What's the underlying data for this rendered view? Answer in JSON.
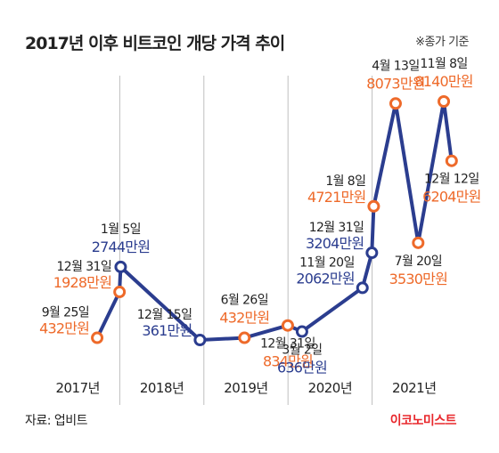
{
  "header": {
    "title": "2017년 이후 비트코인 개당 가격 추이",
    "note": "※종가 기준"
  },
  "footer": {
    "source": "자료: 업비트",
    "brand": "이코노미스트"
  },
  "colors": {
    "line": "#2b3d8f",
    "highlight": "#ee6a2a",
    "grid": "#bfbfbf",
    "axis": "#555555",
    "brand": "#e8272c"
  },
  "chart_data": {
    "type": "line",
    "title": "2017년 이후 비트코인 개당 가격 추이",
    "unit": "만원",
    "x_categories": [
      "2017년",
      "2018년",
      "2019년",
      "2020년",
      "2021년"
    ],
    "series": [
      {
        "points": [
          {
            "date": "2017-09-25",
            "date_label": "9월 25일",
            "value": 432,
            "value_label": "432만원",
            "color": "orange",
            "label_side": "left"
          },
          {
            "date": "2017-12-31",
            "date_label": "12월 31일",
            "value": 1928,
            "value_label": "1928만원",
            "color": "orange",
            "label_side": "left"
          },
          {
            "date": "2018-01-05",
            "date_label": "1월 5일",
            "value": 2744,
            "value_label": "2744만원",
            "color": "blue",
            "label_side": "above"
          },
          {
            "date": "2018-12-15",
            "date_label": "12월 15일",
            "value": 361,
            "value_label": "361만원",
            "color": "blue",
            "label_side": "left"
          },
          {
            "date": "2019-06-26",
            "date_label": "6월 26일",
            "value": 432,
            "value_label": "432만원",
            "color": "orange",
            "label_side": "above"
          },
          {
            "date": "2019-12-31",
            "date_label": "12월 31일",
            "value": 834,
            "value_label": "834만원",
            "color": "orange",
            "label_side": "below"
          },
          {
            "date": "2020-03-02",
            "date_label": "3월 2일",
            "value": 636,
            "value_label": "636만원",
            "color": "blue",
            "label_side": "below"
          },
          {
            "date": "2020-11-20",
            "date_label": "11월 20일",
            "value": 2062,
            "value_label": "2062만원",
            "color": "blue",
            "label_side": "left"
          },
          {
            "date": "2020-12-31",
            "date_label": "12월 31일",
            "value": 3204,
            "value_label": "3204만원",
            "color": "blue",
            "label_side": "left"
          },
          {
            "date": "2021-01-08",
            "date_label": "1월 8일",
            "value": 4721,
            "value_label": "4721만원",
            "color": "orange",
            "label_side": "left"
          },
          {
            "date": "2021-04-13",
            "date_label": "4월 13일",
            "value": 8073,
            "value_label": "8073만원",
            "color": "orange",
            "label_side": "above"
          },
          {
            "date": "2021-07-20",
            "date_label": "7월 20일",
            "value": 3530,
            "value_label": "3530만원",
            "color": "orange",
            "label_side": "below"
          },
          {
            "date": "2021-11-08",
            "date_label": "11월 8일",
            "value": 8140,
            "value_label": "8140만원",
            "color": "orange",
            "label_side": "above"
          },
          {
            "date": "2021-12-12",
            "date_label": "12월 12일",
            "value": 6204,
            "value_label": "6204만원",
            "color": "orange",
            "label_side": "below"
          }
        ]
      }
    ],
    "grid": "vertical separators between years"
  }
}
